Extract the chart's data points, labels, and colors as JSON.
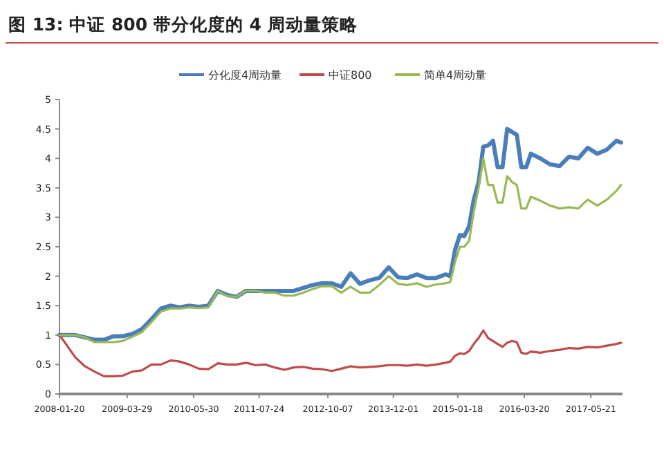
{
  "chart_data": {
    "type": "line",
    "title": "图 13: 中证 800 带分化度的 4 周动量策略",
    "x": [
      "2008-01-20",
      "2008-03",
      "2008-05",
      "2008-07",
      "2008-09",
      "2008-11",
      "2009-01",
      "2009-03",
      "2009-05",
      "2009-07",
      "2009-09",
      "2009-11",
      "2010-01",
      "2010-03",
      "2010-05",
      "2010-07",
      "2010-09",
      "2010-11",
      "2011-01",
      "2011-03",
      "2011-05",
      "2011-07",
      "2011-09",
      "2011-11",
      "2012-01",
      "2012-03",
      "2012-05",
      "2012-07",
      "2012-09",
      "2012-11",
      "2013-01",
      "2013-03",
      "2013-05",
      "2013-07",
      "2013-09",
      "2013-11",
      "2014-01",
      "2014-03",
      "2014-05",
      "2014-07",
      "2014-09",
      "2014-11",
      "2014-12",
      "2015-01",
      "2015-02",
      "2015-03",
      "2015-04",
      "2015-05",
      "2015-06",
      "2015-07",
      "2015-08",
      "2015-09",
      "2015-10",
      "2015-11",
      "2015-12",
      "2016-01",
      "2016-02",
      "2016-03",
      "2016-04",
      "2016-05",
      "2016-07",
      "2016-09",
      "2016-11",
      "2017-01",
      "2017-03",
      "2017-05",
      "2017-07",
      "2017-09",
      "2017-11",
      "2017-12"
    ],
    "series": [
      {
        "name": "分化度4周动量",
        "color": "#4a7ebb",
        "values": [
          1,
          1,
          1,
          0.96,
          0.92,
          0.92,
          0.98,
          0.98,
          1.02,
          1.1,
          1.27,
          1.45,
          1.5,
          1.47,
          1.5,
          1.48,
          1.5,
          1.75,
          1.68,
          1.65,
          1.75,
          1.75,
          1.75,
          1.75,
          1.75,
          1.75,
          1.8,
          1.85,
          1.88,
          1.88,
          1.82,
          2.05,
          1.87,
          1.93,
          1.97,
          2.15,
          1.98,
          1.97,
          2.03,
          1.97,
          1.97,
          2.03,
          2.0,
          2.45,
          2.7,
          2.68,
          2.85,
          3.3,
          3.6,
          4.2,
          4.22,
          4.3,
          3.85,
          3.85,
          4.5,
          4.45,
          4.4,
          3.85,
          3.85,
          4.08,
          4.0,
          3.9,
          3.87,
          4.03,
          4.0,
          4.18,
          4.08,
          4.15,
          4.3,
          4.27
        ]
      },
      {
        "name": "中证800",
        "color": "#be4b48",
        "values": [
          1,
          0.85,
          0.62,
          0.47,
          0.38,
          0.3,
          0.3,
          0.31,
          0.38,
          0.4,
          0.5,
          0.5,
          0.57,
          0.55,
          0.5,
          0.43,
          0.42,
          0.52,
          0.5,
          0.5,
          0.53,
          0.49,
          0.5,
          0.45,
          0.41,
          0.45,
          0.46,
          0.43,
          0.42,
          0.39,
          0.43,
          0.47,
          0.45,
          0.46,
          0.47,
          0.49,
          0.49,
          0.48,
          0.5,
          0.48,
          0.5,
          0.53,
          0.55,
          0.65,
          0.69,
          0.68,
          0.73,
          0.85,
          0.95,
          1.08,
          0.95,
          0.9,
          0.85,
          0.8,
          0.87,
          0.9,
          0.88,
          0.7,
          0.68,
          0.72,
          0.7,
          0.73,
          0.75,
          0.78,
          0.77,
          0.8,
          0.79,
          0.82,
          0.85,
          0.87
        ]
      },
      {
        "name": "简单4周动量",
        "color": "#98b954",
        "values": [
          1,
          1,
          1,
          0.96,
          0.88,
          0.88,
          0.88,
          0.9,
          0.97,
          1.05,
          1.22,
          1.4,
          1.45,
          1.45,
          1.47,
          1.46,
          1.47,
          1.75,
          1.66,
          1.65,
          1.75,
          1.75,
          1.72,
          1.72,
          1.67,
          1.67,
          1.72,
          1.78,
          1.83,
          1.83,
          1.72,
          1.82,
          1.72,
          1.72,
          1.85,
          2.0,
          1.87,
          1.85,
          1.88,
          1.82,
          1.86,
          1.88,
          1.9,
          2.25,
          2.5,
          2.5,
          2.6,
          3.1,
          3.5,
          4.0,
          3.55,
          3.55,
          3.25,
          3.25,
          3.7,
          3.6,
          3.55,
          3.15,
          3.15,
          3.35,
          3.28,
          3.2,
          3.15,
          3.17,
          3.15,
          3.3,
          3.2,
          3.3,
          3.45,
          3.55
        ]
      }
    ],
    "xlim": [
      "2008-01-20",
      "2017-12-10"
    ],
    "xticks": [
      "2008-01-20",
      "2009-03-29",
      "2010-05-30",
      "2011-07-24",
      "2012-10-07",
      "2013-12-01",
      "2015-01-18",
      "2016-03-20",
      "2017-05-21"
    ],
    "ylim": [
      0,
      5
    ],
    "yticks": [
      0,
      0.5,
      1,
      1.5,
      2,
      2.5,
      3,
      3.5,
      4,
      4.5,
      5
    ],
    "grid": false,
    "legend": "top",
    "line_style": "solid",
    "marker": "none"
  }
}
